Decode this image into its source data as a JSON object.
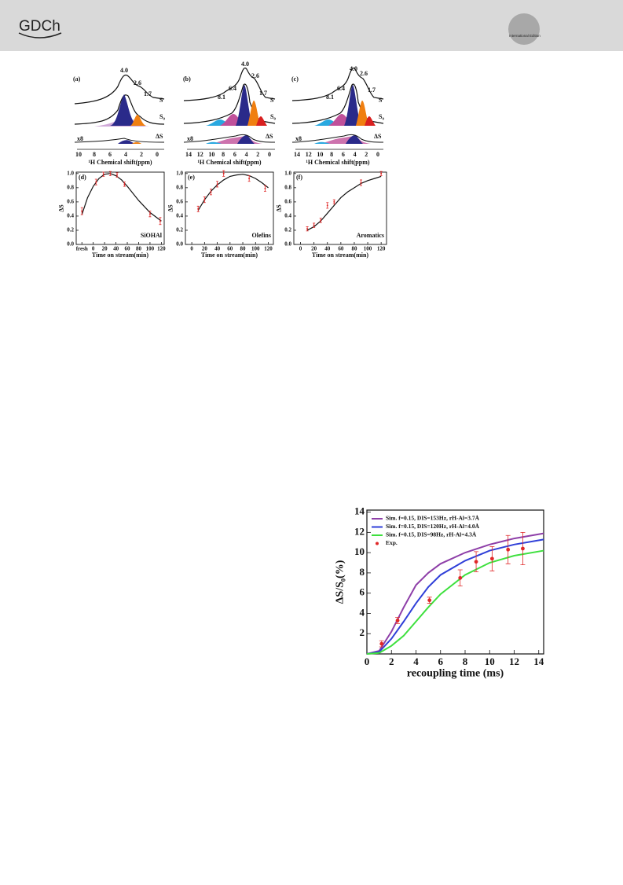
{
  "header": {
    "logo": "GDCh",
    "edition": "International Edition"
  },
  "spectra": [
    {
      "panel_label": "(a)",
      "peaks": [
        "4.0",
        "2.6",
        "1.7"
      ],
      "s_label": "S",
      "s0_label": "S₀",
      "scale_label": "x8",
      "delta_label": "ΔS",
      "xticks": [
        "10",
        "8",
        "6",
        "4",
        "2",
        "0"
      ],
      "x_label": "¹H Chemical shift(ppm)"
    },
    {
      "panel_label": "(b)",
      "peaks": [
        "8.1",
        "6.4",
        "4.0",
        "2.6",
        "1.7"
      ],
      "s_label": "S",
      "s0_label": "S₀",
      "scale_label": "x8",
      "delta_label": "ΔS",
      "xticks": [
        "14",
        "12",
        "10",
        "8",
        "6",
        "4",
        "2",
        "0"
      ],
      "x_label": "¹H Chemical shift(ppm)"
    },
    {
      "panel_label": "(c)",
      "peaks": [
        "8.1",
        "6.4",
        "4.0",
        "2.6",
        "1.7"
      ],
      "s_label": "S",
      "s0_label": "S₀",
      "scale_label": "x8",
      "delta_label": "ΔS",
      "xticks": [
        "14",
        "12",
        "10",
        "8",
        "6",
        "4",
        "2",
        "0"
      ],
      "x_label": "¹H Chemical shift(ppm)"
    }
  ],
  "chart_data": [
    {
      "type": "scatter",
      "panel_label": "(d)",
      "annotation": "SiOHAl",
      "x_label": "Time on stream(min)",
      "y_label": "ΔS",
      "xlim": [
        -30,
        125
      ],
      "ylim": [
        0,
        1.02
      ],
      "xticks": [
        {
          "value": -20,
          "label": "fresh"
        },
        0,
        20,
        40,
        60,
        80,
        100,
        120
      ],
      "yticks": [
        {
          "value": 0,
          "label": "0.0"
        },
        {
          "value": 0.2,
          "label": "0.2"
        },
        {
          "value": 0.4,
          "label": "0.4"
        },
        {
          "value": 0.6,
          "label": "0.6"
        },
        {
          "value": 0.8,
          "label": "0.8"
        },
        {
          "value": 1,
          "label": "1.0"
        }
      ],
      "series": [
        {
          "mark": "line",
          "color": "#111111",
          "x": [
            -20,
            -10,
            0,
            10,
            20,
            30,
            40,
            50,
            60,
            80,
            100,
            120
          ],
          "values": [
            0.42,
            0.66,
            0.82,
            0.93,
            0.99,
            1.0,
            0.97,
            0.91,
            0.82,
            0.62,
            0.45,
            0.33
          ]
        },
        {
          "mark": "errorbar",
          "color": "#e02828",
          "x": [
            -20,
            5,
            18,
            30,
            42,
            55,
            100,
            118
          ],
          "values": [
            0.47,
            0.88,
            0.99,
            1.0,
            0.98,
            0.85,
            0.43,
            0.33
          ],
          "errors": [
            0.05,
            0.04,
            0.03,
            0.03,
            0.03,
            0.03,
            0.04,
            0.05
          ]
        }
      ]
    },
    {
      "type": "scatter",
      "panel_label": "(e)",
      "annotation": "Olefins",
      "x_label": "Time on stream(min)",
      "y_label": "ΔS",
      "xlim": [
        -10,
        128
      ],
      "ylim": [
        0,
        1.02
      ],
      "xticks": [
        0,
        20,
        40,
        60,
        80,
        100,
        120
      ],
      "yticks": [
        {
          "value": 0,
          "label": "0.0"
        },
        {
          "value": 0.2,
          "label": "0.2"
        },
        {
          "value": 0.4,
          "label": "0.4"
        },
        {
          "value": 0.6,
          "label": "0.6"
        },
        {
          "value": 0.8,
          "label": "0.8"
        },
        {
          "value": 1,
          "label": "1.0"
        }
      ],
      "series": [
        {
          "mark": "line",
          "color": "#111111",
          "x": [
            10,
            20,
            30,
            40,
            50,
            60,
            70,
            80,
            90,
            100,
            110,
            120
          ],
          "values": [
            0.48,
            0.63,
            0.75,
            0.84,
            0.91,
            0.96,
            0.98,
            0.99,
            0.97,
            0.93,
            0.87,
            0.8
          ]
        },
        {
          "mark": "errorbar",
          "color": "#e02828",
          "x": [
            10,
            20,
            30,
            40,
            50,
            90,
            115
          ],
          "values": [
            0.5,
            0.63,
            0.74,
            0.85,
            1.0,
            0.93,
            0.79
          ],
          "errors": [
            0.04,
            0.04,
            0.04,
            0.04,
            0.04,
            0.04,
            0.04
          ]
        }
      ]
    },
    {
      "type": "scatter",
      "panel_label": "(f)",
      "annotation": "Aromatics",
      "x_label": "Time on stream(min)",
      "y_label": "ΔS",
      "xlim": [
        -10,
        128
      ],
      "ylim": [
        0,
        1.02
      ],
      "xticks": [
        0,
        20,
        40,
        60,
        80,
        100,
        120
      ],
      "yticks": [
        {
          "value": 0,
          "label": "0.0"
        },
        {
          "value": 0.2,
          "label": "0.2"
        },
        {
          "value": 0.4,
          "label": "0.4"
        },
        {
          "value": 0.6,
          "label": "0.6"
        },
        {
          "value": 0.8,
          "label": "0.8"
        },
        {
          "value": 1,
          "label": "1.0"
        }
      ],
      "series": [
        {
          "mark": "line",
          "color": "#111111",
          "x": [
            10,
            20,
            30,
            40,
            50,
            60,
            70,
            80,
            90,
            100,
            110,
            120
          ],
          "values": [
            0.2,
            0.25,
            0.33,
            0.44,
            0.55,
            0.66,
            0.74,
            0.8,
            0.86,
            0.9,
            0.93,
            0.96
          ]
        },
        {
          "mark": "errorbar",
          "color": "#e02828",
          "x": [
            10,
            20,
            30,
            40,
            50,
            90,
            120
          ],
          "values": [
            0.22,
            0.27,
            0.34,
            0.55,
            0.6,
            0.87,
            1.0
          ],
          "errors": [
            0.03,
            0.03,
            0.03,
            0.04,
            0.03,
            0.04,
            0.03
          ]
        }
      ]
    },
    {
      "type": "line",
      "x_label": "recoupling time (ms)",
      "y_label": "ΔS/S₀(%)",
      "xlim": [
        0,
        14.4
      ],
      "ylim": [
        0,
        14.2
      ],
      "xticks": [
        0,
        2,
        4,
        6,
        8,
        10,
        12,
        14
      ],
      "yticks": [
        2,
        4,
        6,
        8,
        10,
        12,
        14
      ],
      "series": [
        {
          "name": "Sim. f=0.15, DIS=153Hz, rH-Al=3.7Å",
          "mark": "line",
          "color": "#8e3fa8",
          "x": [
            0,
            1,
            2,
            3,
            4,
            5,
            6,
            8,
            10,
            12,
            14.4
          ],
          "values": [
            0,
            0.3,
            2.2,
            4.6,
            6.8,
            8.0,
            8.9,
            10.0,
            10.8,
            11.4,
            11.9
          ]
        },
        {
          "name": "Sim. f=0.15, DIS=120Hz, rH-Al=4.0Å",
          "mark": "line",
          "color": "#2f3fd8",
          "x": [
            0,
            1,
            2,
            3,
            4,
            5,
            6,
            8,
            10,
            12,
            14.4
          ],
          "values": [
            0,
            0.2,
            1.5,
            3.2,
            5.0,
            6.6,
            7.8,
            9.2,
            10.2,
            10.8,
            11.3
          ]
        },
        {
          "name": "Sim. f=0.15, DIS=98Hz, rH-Al=4.3Å",
          "mark": "line",
          "color": "#3ee03e",
          "x": [
            0,
            1,
            2,
            3,
            4,
            5,
            6,
            8,
            10,
            12,
            14.4
          ],
          "values": [
            0,
            0.1,
            0.8,
            1.8,
            3.2,
            4.6,
            5.9,
            7.8,
            9.0,
            9.7,
            10.2
          ]
        },
        {
          "name": "Exp.",
          "mark": "errorbar",
          "color": "#e02828",
          "x": [
            1.2,
            2.5,
            5.1,
            7.6,
            8.9,
            10.2,
            11.5,
            12.7
          ],
          "values": [
            1.0,
            3.3,
            5.3,
            7.5,
            9.1,
            9.4,
            10.3,
            10.4
          ],
          "errors": [
            0.3,
            0.3,
            0.3,
            0.8,
            1.0,
            1.2,
            1.4,
            1.6
          ]
        }
      ]
    }
  ]
}
